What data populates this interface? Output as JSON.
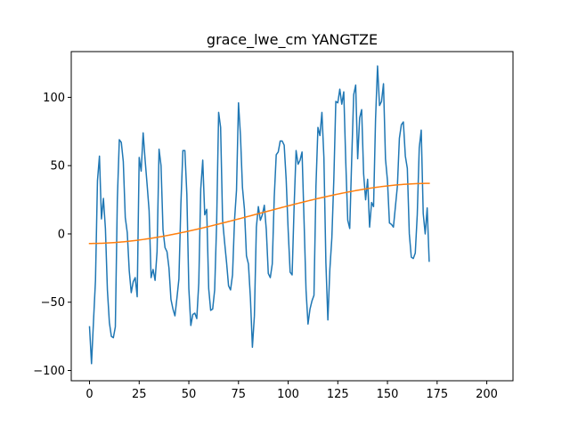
{
  "chart_data": {
    "type": "line",
    "title": "grace_lwe_cm YANGTZE",
    "xlabel": "",
    "ylabel": "",
    "xlim": [
      -9.2,
      213.2
    ],
    "ylim": [
      -107.5,
      133.5
    ],
    "grid": false,
    "x_ticks": [
      0,
      25,
      50,
      75,
      100,
      125,
      150,
      175,
      200
    ],
    "y_ticks": [
      -100,
      -50,
      0,
      50,
      100
    ],
    "series": [
      {
        "color": "#1f77b4",
        "x_start": 0,
        "values": [
          -68,
          -95,
          -64,
          -34,
          39,
          57,
          11,
          26,
          4,
          -41,
          -65,
          -75,
          -76,
          -68,
          25,
          69,
          67,
          53,
          12,
          1,
          -27,
          -43,
          -35,
          -32,
          -46,
          56,
          46,
          74,
          54,
          36,
          17,
          -32,
          -26,
          -34,
          -13,
          62,
          50,
          3,
          -10,
          -13,
          -25,
          -48,
          -55,
          -60,
          -47,
          -33,
          22,
          61,
          61,
          29,
          -40,
          -67,
          -59,
          -58,
          -62,
          -36,
          33,
          54,
          14,
          18,
          -40,
          -56,
          -55,
          -41,
          8,
          89,
          78,
          10,
          -6,
          -21,
          -38,
          -41,
          -30,
          10,
          32,
          96,
          72,
          34,
          18,
          -16,
          -22,
          -47,
          -83,
          -60,
          5,
          20,
          10,
          14,
          21,
          3,
          -29,
          -32,
          -22,
          27,
          58,
          60,
          68,
          68,
          65,
          40,
          3,
          -28,
          -30,
          20,
          61,
          51,
          54,
          60,
          10,
          -41,
          -66,
          -55,
          -49,
          -45,
          35,
          78,
          72,
          89,
          56,
          -21,
          -63,
          -26,
          -3,
          40,
          97,
          96,
          106,
          95,
          104,
          53,
          10,
          4,
          55,
          102,
          109,
          55,
          85,
          91,
          44,
          25,
          40,
          5,
          23,
          20,
          84,
          123,
          94,
          97,
          110,
          55,
          39,
          8,
          7,
          5,
          20,
          35,
          70,
          80,
          82,
          57,
          48,
          0,
          -17,
          -18,
          -14,
          14,
          63,
          76,
          15,
          0,
          19,
          -20
        ]
      },
      {
        "color": "#ff7f0e",
        "x_start": 0,
        "trend": true,
        "from": -7,
        "to": 37
      }
    ]
  }
}
